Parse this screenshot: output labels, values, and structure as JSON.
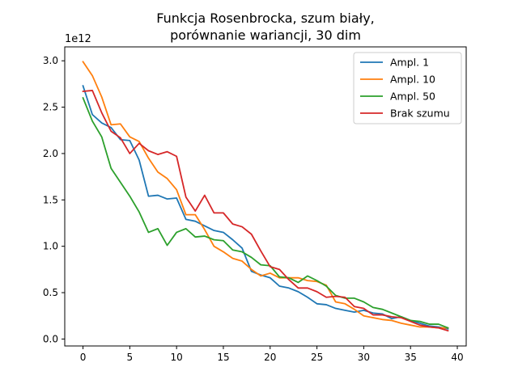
{
  "chart_data": {
    "type": "line",
    "title_line1": "Funkcja Rosenbrocka, szum biały,",
    "title_line2": "porównanie wariancji, 30 dim",
    "y_multiplier": "1e12",
    "xlim": [
      -1.95,
      40.95
    ],
    "ylim": [
      -0.075,
      3.15
    ],
    "x_ticks": [
      0,
      5,
      10,
      15,
      20,
      25,
      30,
      35,
      40
    ],
    "y_ticks": [
      0.0,
      0.5,
      1.0,
      1.5,
      2.0,
      2.5,
      3.0
    ],
    "y_tick_labels": [
      "0.0",
      "0.5",
      "1.0",
      "1.5",
      "2.0",
      "2.5",
      "3.0"
    ],
    "grid": false,
    "legend_position": "upper right",
    "x": [
      0,
      1,
      2,
      3,
      4,
      5,
      6,
      7,
      8,
      9,
      10,
      11,
      12,
      13,
      14,
      15,
      16,
      17,
      18,
      19,
      20,
      21,
      22,
      23,
      24,
      25,
      26,
      27,
      28,
      29,
      30,
      31,
      32,
      33,
      34,
      35,
      36,
      37,
      38,
      39
    ],
    "series": [
      {
        "name": "Ampl. 1",
        "color": "#1f77b4",
        "values": [
          2.73,
          2.42,
          2.33,
          2.28,
          2.15,
          2.14,
          1.93,
          1.54,
          1.55,
          1.51,
          1.52,
          1.29,
          1.27,
          1.22,
          1.17,
          1.15,
          1.07,
          0.98,
          0.73,
          0.69,
          0.66,
          0.57,
          0.55,
          0.51,
          0.45,
          0.38,
          0.37,
          0.33,
          0.31,
          0.29,
          0.31,
          0.28,
          0.27,
          0.22,
          0.24,
          0.2,
          0.17,
          0.14,
          0.13,
          0.11
        ]
      },
      {
        "name": "Ampl. 10",
        "color": "#ff7f0e",
        "values": [
          2.99,
          2.84,
          2.61,
          2.31,
          2.32,
          2.18,
          2.13,
          1.95,
          1.8,
          1.73,
          1.61,
          1.34,
          1.34,
          1.18,
          1.0,
          0.94,
          0.87,
          0.84,
          0.75,
          0.68,
          0.71,
          0.66,
          0.66,
          0.66,
          0.63,
          0.62,
          0.58,
          0.4,
          0.38,
          0.32,
          0.25,
          0.23,
          0.21,
          0.2,
          0.17,
          0.15,
          0.13,
          0.13,
          0.12,
          0.12
        ]
      },
      {
        "name": "Ampl. 50",
        "color": "#2ca02c",
        "values": [
          2.6,
          2.35,
          2.18,
          1.84,
          1.69,
          1.54,
          1.37,
          1.15,
          1.19,
          1.01,
          1.15,
          1.19,
          1.1,
          1.11,
          1.07,
          1.06,
          0.96,
          0.94,
          0.88,
          0.8,
          0.79,
          0.67,
          0.66,
          0.61,
          0.68,
          0.63,
          0.57,
          0.47,
          0.44,
          0.44,
          0.4,
          0.34,
          0.32,
          0.28,
          0.24,
          0.2,
          0.19,
          0.16,
          0.16,
          0.12
        ]
      },
      {
        "name": "Brak szumu",
        "color": "#d62728",
        "values": [
          2.67,
          2.68,
          2.44,
          2.24,
          2.17,
          2.0,
          2.11,
          2.03,
          1.99,
          2.02,
          1.97,
          1.53,
          1.38,
          1.55,
          1.36,
          1.36,
          1.24,
          1.21,
          1.13,
          0.95,
          0.78,
          0.75,
          0.64,
          0.55,
          0.55,
          0.51,
          0.45,
          0.46,
          0.45,
          0.35,
          0.33,
          0.26,
          0.26,
          0.24,
          0.23,
          0.19,
          0.15,
          0.13,
          0.12,
          0.09
        ]
      }
    ]
  }
}
